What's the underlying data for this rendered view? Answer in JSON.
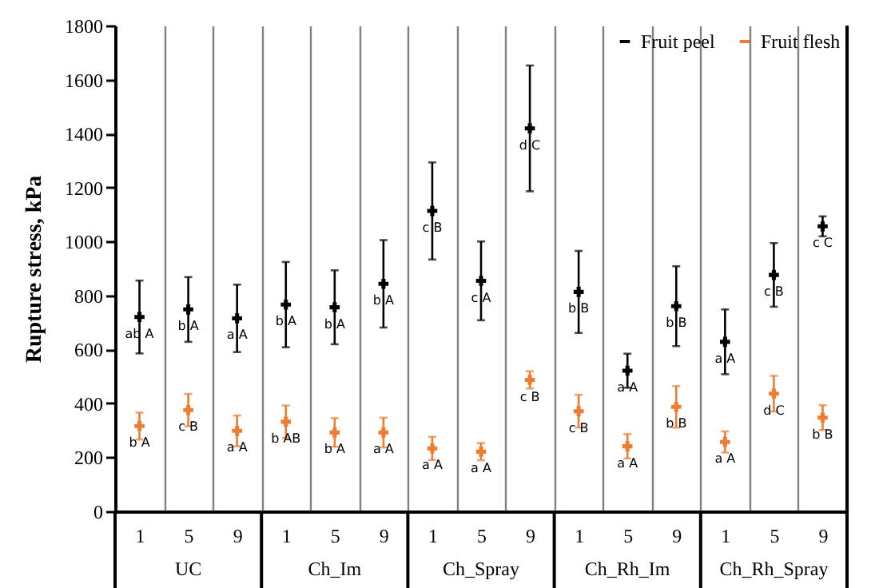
{
  "chart_data": {
    "type": "scatter",
    "ylabel": "Rupture stress, kPa",
    "categories": [
      "1",
      "5",
      "9",
      "1",
      "5",
      "9",
      "1",
      "5",
      "9",
      "1",
      "5",
      "9",
      "1",
      "5",
      "9"
    ],
    "annotations": [
      "UC",
      "Ch_Im",
      "Ch_Spray",
      "Ch_Rh_Im",
      "Ch_Rh_Spray"
    ],
    "series": [
      {
        "name": "Fruit peel",
        "color": "#000000",
        "values": [
          720,
          748,
          715,
          766,
          756,
          843,
          1113,
          854,
          1419,
          813,
          521,
          760,
          628,
          876,
          1056
        ],
        "errors": [
          135,
          120,
          125,
          158,
          137,
          162,
          180,
          146,
          233,
          152,
          63,
          148,
          120,
          118,
          37
        ],
        "value_labels": [
          "ab A",
          "b A",
          "a A",
          "b A",
          "b A",
          "b A",
          "c B",
          "c A",
          "d C",
          "b B",
          "a A",
          "b B",
          "a A",
          "c B",
          "c C"
        ]
      },
      {
        "name": "Fruit flesh",
        "color": "#ed7d31",
        "values": [
          316,
          375,
          298,
          332,
          292,
          292,
          233,
          221,
          487,
          371,
          241,
          387,
          257,
          436,
          347
        ],
        "errors": [
          50,
          60,
          57,
          60,
          53,
          55,
          43,
          32,
          32,
          61,
          45,
          77,
          39,
          66,
          46
        ],
        "value_labels": [
          "b A",
          "c B",
          "a A",
          "b AB",
          "b A",
          "a A",
          "a A",
          "a A",
          "c B",
          "c B",
          "a A",
          "b B",
          "a A",
          "d C",
          "b B"
        ]
      }
    ],
    "ylim": [
      0,
      1800
    ],
    "yticks": [
      0,
      200,
      400,
      600,
      800,
      1000,
      1200,
      1400,
      1600,
      1800
    ],
    "grid": "x",
    "legend": "top right",
    "marker": "cross"
  }
}
